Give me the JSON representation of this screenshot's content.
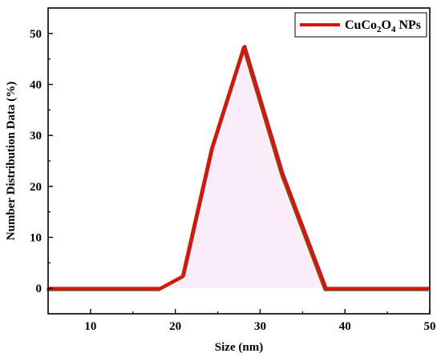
{
  "chart_data": {
    "type": "line",
    "xlabel": "Size (nm)",
    "ylabel": "Number Distribution Data (%)",
    "xlim": [
      5,
      50
    ],
    "ylim": [
      -5,
      55
    ],
    "xticks": [
      10,
      20,
      30,
      40,
      50
    ],
    "yticks": [
      0,
      10,
      20,
      30,
      40,
      50
    ],
    "grid": false,
    "legend_position": "top-right",
    "legend": {
      "parts": [
        {
          "text": "CuCo",
          "role": "normal"
        },
        {
          "text": "2",
          "role": "sub"
        },
        {
          "text": "O",
          "role": "normal"
        },
        {
          "text": "4",
          "role": "sub"
        },
        {
          "text": " NPs",
          "role": "normal"
        }
      ]
    },
    "series": [
      {
        "color": "#e01010",
        "shadow_color": "#7a4a1a",
        "x": [
          5,
          18.2,
          21.0,
          24.4,
          28.2,
          32.7,
          37.8,
          42.5,
          50
        ],
        "y": [
          0,
          0,
          2.5,
          27.5,
          47.5,
          22.5,
          0,
          0,
          0
        ]
      }
    ]
  }
}
